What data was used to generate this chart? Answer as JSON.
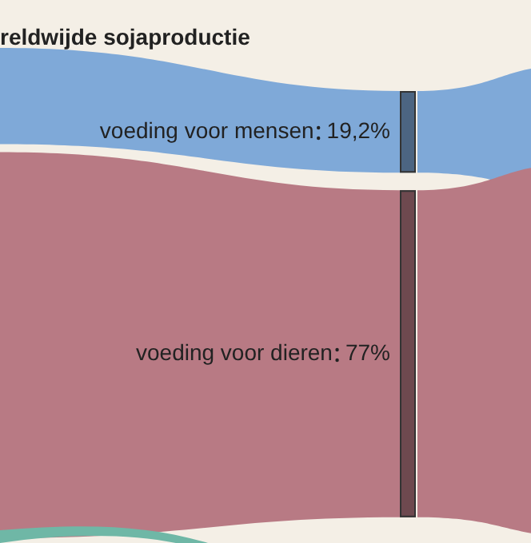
{
  "chart_data": {
    "type": "other",
    "title": "reldwijde sojaproductie",
    "categories": [
      "voeding voor mensen",
      "voeding voor dieren"
    ],
    "values": [
      19.2,
      77
    ],
    "value_labels": [
      "19,2%",
      "77%"
    ],
    "colors": [
      "#7fa9d8",
      "#b87a84"
    ]
  }
}
